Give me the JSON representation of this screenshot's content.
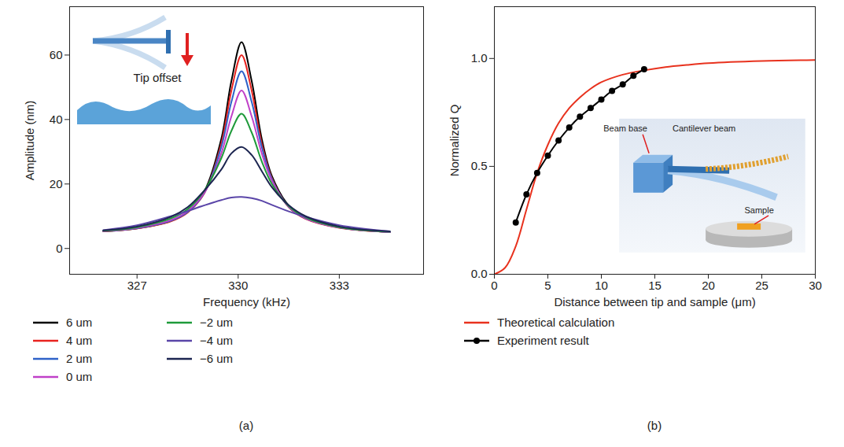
{
  "chart_data": [
    {
      "type": "line",
      "caption": "(a)",
      "x_label": "Frequency (kHz)",
      "y_label": "Amplitude (nm)",
      "xlim": [
        325,
        335.5
      ],
      "xticks": [
        327,
        330,
        333
      ],
      "ylim": [
        -8,
        75
      ],
      "yticks": [
        0,
        20,
        40,
        60
      ],
      "legend": "below",
      "annotations": [
        "Tip offset"
      ],
      "x": [
        326,
        327,
        328,
        328.5,
        329,
        329.5,
        329.8,
        330.1,
        330.4,
        330.7,
        331,
        331.5,
        332,
        333,
        334.5
      ],
      "series": [
        {
          "name": "6 um",
          "color": "#000000",
          "values": [
            5.3,
            6.2,
            8.5,
            11.4,
            17.8,
            34,
            52,
            64,
            52,
            34,
            22.5,
            13.3,
            9.4,
            6.5,
            5.1
          ]
        },
        {
          "name": "4 um",
          "color": "#e8231f",
          "values": [
            5.3,
            6.2,
            8.4,
            11.1,
            17.2,
            32.5,
            49,
            60,
            49,
            32.5,
            21.8,
            12.8,
            9.2,
            6.4,
            5.1
          ]
        },
        {
          "name": "2 um",
          "color": "#2f62c8",
          "values": [
            5.4,
            6.3,
            8.6,
            11.3,
            17.3,
            31.5,
            45.5,
            55,
            45.5,
            31.5,
            21.5,
            12.9,
            9.3,
            6.5,
            5.1
          ]
        },
        {
          "name": "0 um",
          "color": "#c040c8",
          "values": [
            5.4,
            6.4,
            8.8,
            11.6,
            17.4,
            29.5,
            41,
            49,
            41,
            29.5,
            21,
            13,
            9.4,
            6.5,
            5.1
          ]
        },
        {
          "name": "−2 um",
          "color": "#1e9a3a",
          "values": [
            5.5,
            6.6,
            9.3,
            12.2,
            18,
            28,
            36.5,
            41.8,
            36,
            27,
            20,
            13.2,
            9.6,
            6.6,
            5.2
          ]
        },
        {
          "name": "−4 um",
          "color": "#5a45a8",
          "values": [
            5.7,
            7.2,
            10,
            11.6,
            13.4,
            15,
            15.8,
            16,
            15.6,
            14.8,
            13.5,
            11.5,
            9.8,
            7.2,
            5.3
          ]
        },
        {
          "name": "−6 um",
          "color": "#1c2550",
          "values": [
            5.6,
            6.8,
            9.8,
            12.8,
            18,
            24.5,
            29.5,
            31.5,
            29,
            24,
            19,
            13.4,
            10,
            6.8,
            5.3
          ]
        }
      ]
    },
    {
      "type": "line",
      "caption": "(b)",
      "x_label": "Distance between tip and sample (μm)",
      "y_label": "Normalized Q",
      "xlim": [
        0,
        30
      ],
      "xticks": [
        0,
        5,
        10,
        15,
        20,
        25,
        30
      ],
      "ylim": [
        0,
        1.24
      ],
      "yticks": [
        {
          "value": 0,
          "label": "0.0"
        },
        {
          "value": 0.5,
          "label": "0.5"
        },
        {
          "value": 1,
          "label": "1.0"
        }
      ],
      "legend": "below",
      "annotations": [
        "Beam base",
        "Cantilever beam",
        "Sample"
      ],
      "series": [
        {
          "name": "Theoretical calculation",
          "color": "#e8321e",
          "line_style": "solid",
          "x": [
            0,
            1,
            2,
            3,
            4,
            5,
            6,
            7,
            8,
            9,
            10,
            12,
            14,
            16,
            18,
            20,
            25,
            30
          ],
          "values": [
            0,
            0.03,
            0.13,
            0.3,
            0.47,
            0.6,
            0.7,
            0.77,
            0.82,
            0.86,
            0.89,
            0.925,
            0.945,
            0.96,
            0.97,
            0.978,
            0.988,
            0.993
          ]
        },
        {
          "name": "Experiment result",
          "color": "#000000",
          "line_style": "solid",
          "marker": "circle",
          "x": [
            2,
            3,
            4,
            5,
            6,
            7,
            8,
            9,
            10,
            11,
            12,
            13,
            14
          ],
          "values": [
            0.24,
            0.37,
            0.47,
            0.55,
            0.62,
            0.68,
            0.73,
            0.77,
            0.81,
            0.85,
            0.88,
            0.92,
            0.95
          ]
        }
      ]
    }
  ]
}
